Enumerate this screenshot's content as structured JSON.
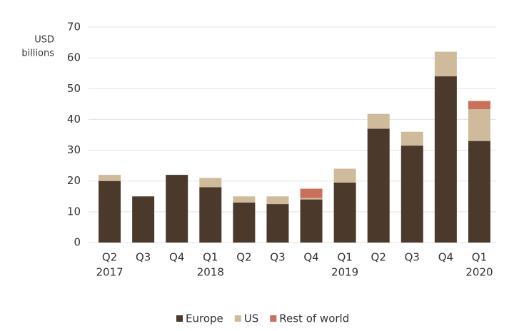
{
  "chart_data": {
    "type": "stacked-bar",
    "ylabel_lines": [
      "USD",
      "billions"
    ],
    "categories": [
      "Q2",
      "Q3",
      "Q4",
      "Q1",
      "Q2",
      "Q3",
      "Q4",
      "Q1",
      "Q2",
      "Q3",
      "Q4",
      "Q1"
    ],
    "category_years": [
      "2017",
      null,
      null,
      "2018",
      null,
      null,
      null,
      "2019",
      null,
      null,
      null,
      "2020"
    ],
    "series": [
      {
        "name": "Europe",
        "color": "#4b3a2c",
        "values": [
          20,
          15,
          22,
          18,
          13,
          12.5,
          14,
          19.5,
          37,
          31.5,
          54,
          33
        ]
      },
      {
        "name": "US",
        "color": "#cfbb9b",
        "values": [
          2,
          0,
          0,
          3,
          2,
          2.5,
          0.5,
          4.5,
          4.8,
          4.5,
          8,
          10.3
        ]
      },
      {
        "name": "Rest of world",
        "color": "#c8705a",
        "values": [
          0,
          0,
          0,
          0,
          0,
          0,
          3,
          0,
          0,
          0,
          0,
          2.7
        ]
      }
    ],
    "ylim": [
      0,
      70
    ],
    "yticks": [
      0,
      10,
      20,
      30,
      40,
      50,
      60,
      70
    ],
    "grid": true,
    "legend": "bottom"
  }
}
